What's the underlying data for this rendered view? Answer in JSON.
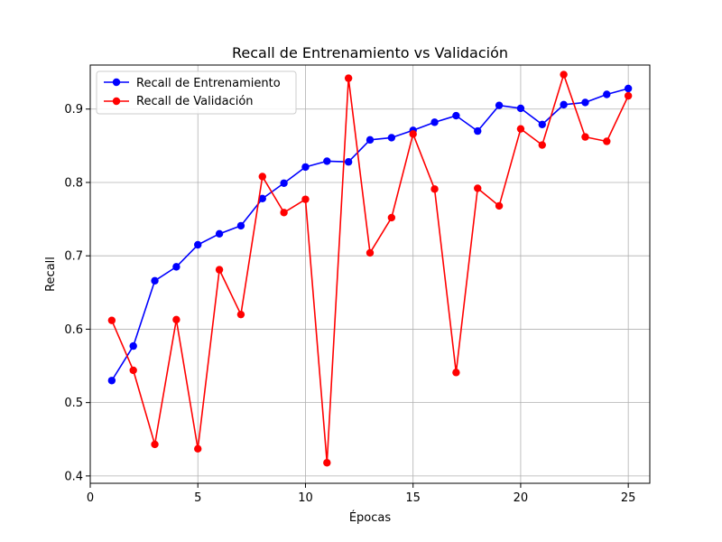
{
  "chart_data": {
    "type": "line",
    "title": "Recall de Entrenamiento vs Validación",
    "xlabel": "Épocas",
    "ylabel": "Recall",
    "xlim": [
      0,
      26
    ],
    "ylim": [
      0.39,
      0.96
    ],
    "xticks": [
      0,
      5,
      10,
      15,
      20,
      25
    ],
    "xtick_labels": [
      "0",
      "5",
      "10",
      "15",
      "20",
      "25"
    ],
    "yticks": [
      0.4,
      0.5,
      0.6,
      0.7,
      0.8,
      0.9
    ],
    "ytick_labels": [
      "0.4",
      "0.5",
      "0.6",
      "0.7",
      "0.8",
      "0.9"
    ],
    "grid": true,
    "legend_position": "top-left",
    "x": [
      1,
      2,
      3,
      4,
      5,
      6,
      7,
      8,
      9,
      10,
      11,
      12,
      13,
      14,
      15,
      16,
      17,
      18,
      19,
      20,
      21,
      22,
      23,
      24,
      25
    ],
    "series": [
      {
        "name": "Recall de Entrenamiento",
        "color": "#0000ff",
        "values": [
          0.53,
          0.577,
          0.666,
          0.685,
          0.715,
          0.73,
          0.741,
          0.778,
          0.799,
          0.821,
          0.829,
          0.828,
          0.858,
          0.861,
          0.871,
          0.882,
          0.891,
          0.87,
          0.905,
          0.901,
          0.879,
          0.906,
          0.909,
          0.92,
          0.928
        ]
      },
      {
        "name": "Recall de Validación",
        "color": "#ff0000",
        "values": [
          0.612,
          0.544,
          0.443,
          0.613,
          0.437,
          0.681,
          0.62,
          0.808,
          0.759,
          0.777,
          0.418,
          0.942,
          0.704,
          0.752,
          0.866,
          0.791,
          0.541,
          0.792,
          0.768,
          0.873,
          0.851,
          0.947,
          0.862,
          0.856,
          0.918
        ]
      }
    ]
  }
}
